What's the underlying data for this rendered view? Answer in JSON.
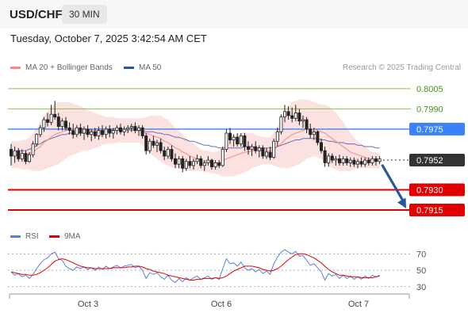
{
  "header": {
    "symbol": "USD/CHF",
    "timeframe": "30 MIN"
  },
  "datetime": "Tuesday, October 7, 2025 3:42:54 AM CET",
  "credit": "Research © 2025 Trading Central",
  "legend_main": [
    {
      "label": "MA 20 + Bollinger Bands",
      "color": "#f28b82"
    },
    {
      "label": "MA 50",
      "color": "#2b5797"
    }
  ],
  "legend_rsi": [
    {
      "label": "RSI",
      "color": "#5b7fd6"
    },
    {
      "label": "9MA",
      "color": "#e00000"
    }
  ],
  "chart_data": [
    {
      "type": "candlestick",
      "ylim": [
        0.7905,
        0.8012
      ],
      "x_ticks": [
        "Oct 3",
        "Oct 6",
        "Oct 7"
      ],
      "candles": [
        [
          0.796,
          0.7964,
          0.7948,
          0.7955
        ],
        [
          0.7955,
          0.7962,
          0.795,
          0.7959
        ],
        [
          0.7959,
          0.7961,
          0.7951,
          0.7953
        ],
        [
          0.7953,
          0.796,
          0.7951,
          0.7957
        ],
        [
          0.7957,
          0.7959,
          0.7949,
          0.7951
        ],
        [
          0.7951,
          0.7958,
          0.795,
          0.7956
        ],
        [
          0.7956,
          0.7966,
          0.7954,
          0.7964
        ],
        [
          0.7964,
          0.7972,
          0.7962,
          0.7971
        ],
        [
          0.7971,
          0.7978,
          0.7969,
          0.7976
        ],
        [
          0.7976,
          0.7984,
          0.7973,
          0.7982
        ],
        [
          0.7982,
          0.7987,
          0.7977,
          0.798
        ],
        [
          0.798,
          0.7993,
          0.7978,
          0.7986
        ],
        [
          0.7986,
          0.7996,
          0.7982,
          0.7984
        ],
        [
          0.7984,
          0.7987,
          0.7974,
          0.7977
        ],
        [
          0.7977,
          0.7983,
          0.7974,
          0.7981
        ],
        [
          0.7981,
          0.7984,
          0.7974,
          0.7976
        ],
        [
          0.7976,
          0.798,
          0.7971,
          0.7974
        ],
        [
          0.7974,
          0.7979,
          0.7968,
          0.7971
        ],
        [
          0.7971,
          0.7978,
          0.7969,
          0.7976
        ],
        [
          0.7976,
          0.7979,
          0.797,
          0.7972
        ],
        [
          0.7972,
          0.7977,
          0.7967,
          0.7975
        ],
        [
          0.7975,
          0.7978,
          0.7969,
          0.7971
        ],
        [
          0.7971,
          0.7975,
          0.7966,
          0.7973
        ],
        [
          0.7973,
          0.7976,
          0.7968,
          0.797
        ],
        [
          0.797,
          0.7977,
          0.7967,
          0.7974
        ],
        [
          0.7974,
          0.7978,
          0.7969,
          0.7971
        ],
        [
          0.7971,
          0.7977,
          0.7968,
          0.7975
        ],
        [
          0.7975,
          0.7978,
          0.7969,
          0.7972
        ],
        [
          0.7972,
          0.7976,
          0.7968,
          0.7974
        ],
        [
          0.7974,
          0.7978,
          0.7971,
          0.7976
        ],
        [
          0.7976,
          0.7979,
          0.7971,
          0.7973
        ],
        [
          0.7973,
          0.7977,
          0.797,
          0.7975
        ],
        [
          0.7975,
          0.7978,
          0.7972,
          0.7976
        ],
        [
          0.7976,
          0.7979,
          0.7973,
          0.7977
        ],
        [
          0.7977,
          0.798,
          0.7972,
          0.7974
        ],
        [
          0.7974,
          0.7978,
          0.797,
          0.7976
        ],
        [
          0.7976,
          0.7978,
          0.7968,
          0.797
        ],
        [
          0.797,
          0.7972,
          0.7956,
          0.7959
        ],
        [
          0.7959,
          0.7968,
          0.7957,
          0.7966
        ],
        [
          0.7966,
          0.797,
          0.7961,
          0.7963
        ],
        [
          0.7963,
          0.7967,
          0.7958,
          0.7965
        ],
        [
          0.7965,
          0.7968,
          0.7957,
          0.7959
        ],
        [
          0.7959,
          0.7962,
          0.7952,
          0.7955
        ],
        [
          0.7955,
          0.7962,
          0.7953,
          0.796
        ],
        [
          0.796,
          0.7963,
          0.7951,
          0.7953
        ],
        [
          0.7953,
          0.7957,
          0.7946,
          0.7949
        ],
        [
          0.7949,
          0.7955,
          0.7946,
          0.7953
        ],
        [
          0.7953,
          0.7955,
          0.7943,
          0.7946
        ],
        [
          0.7946,
          0.7953,
          0.7944,
          0.7951
        ],
        [
          0.7951,
          0.7955,
          0.7946,
          0.7948
        ],
        [
          0.7948,
          0.7953,
          0.7945,
          0.7951
        ],
        [
          0.7951,
          0.7956,
          0.7949,
          0.7953
        ],
        [
          0.7953,
          0.7955,
          0.7946,
          0.7948
        ],
        [
          0.7948,
          0.7952,
          0.7944,
          0.795
        ],
        [
          0.795,
          0.7955,
          0.7948,
          0.7952
        ],
        [
          0.7952,
          0.7953,
          0.7945,
          0.7947
        ],
        [
          0.7947,
          0.7952,
          0.7945,
          0.795
        ],
        [
          0.795,
          0.7952,
          0.7946,
          0.7948
        ],
        [
          0.7948,
          0.7962,
          0.7947,
          0.796
        ],
        [
          0.796,
          0.7975,
          0.7958,
          0.7972
        ],
        [
          0.7972,
          0.7976,
          0.7964,
          0.7967
        ],
        [
          0.7967,
          0.7971,
          0.7962,
          0.7969
        ],
        [
          0.7969,
          0.7972,
          0.7962,
          0.7964
        ],
        [
          0.7964,
          0.7972,
          0.7962,
          0.797
        ],
        [
          0.797,
          0.7972,
          0.7959,
          0.7962
        ],
        [
          0.7962,
          0.7966,
          0.7956,
          0.796
        ],
        [
          0.796,
          0.7964,
          0.7955,
          0.7962
        ],
        [
          0.7962,
          0.7966,
          0.7957,
          0.7959
        ],
        [
          0.7959,
          0.7963,
          0.7954,
          0.7961
        ],
        [
          0.7961,
          0.7963,
          0.7953,
          0.7955
        ],
        [
          0.7955,
          0.7961,
          0.7953,
          0.7958
        ],
        [
          0.7958,
          0.7962,
          0.7952,
          0.7954
        ],
        [
          0.7954,
          0.7968,
          0.7953,
          0.7966
        ],
        [
          0.7966,
          0.7976,
          0.7962,
          0.7973
        ],
        [
          0.7973,
          0.7986,
          0.7971,
          0.7984
        ],
        [
          0.7984,
          0.7993,
          0.798,
          0.7988
        ],
        [
          0.7988,
          0.7992,
          0.7982,
          0.7985
        ],
        [
          0.7985,
          0.7991,
          0.798,
          0.7983
        ],
        [
          0.7983,
          0.7993,
          0.7981,
          0.7987
        ],
        [
          0.7987,
          0.799,
          0.7978,
          0.7981
        ],
        [
          0.7981,
          0.7985,
          0.7976,
          0.7982
        ],
        [
          0.7982,
          0.7984,
          0.7972,
          0.7975
        ],
        [
          0.7975,
          0.7979,
          0.7968,
          0.7971
        ],
        [
          0.7971,
          0.7976,
          0.7967,
          0.7973
        ],
        [
          0.7973,
          0.7974,
          0.7963,
          0.7965
        ],
        [
          0.7965,
          0.7968,
          0.7957,
          0.7959
        ],
        [
          0.7959,
          0.7962,
          0.7947,
          0.795
        ],
        [
          0.795,
          0.7957,
          0.7947,
          0.7955
        ],
        [
          0.7955,
          0.7957,
          0.795,
          0.7952
        ],
        [
          0.7952,
          0.7955,
          0.7948,
          0.7953
        ],
        [
          0.7953,
          0.7956,
          0.7948,
          0.795
        ],
        [
          0.795,
          0.7955,
          0.7948,
          0.7953
        ],
        [
          0.7953,
          0.7955,
          0.7948,
          0.795
        ],
        [
          0.795,
          0.7954,
          0.7947,
          0.7952
        ],
        [
          0.7952,
          0.7954,
          0.7947,
          0.7949
        ],
        [
          0.7949,
          0.7953,
          0.7946,
          0.7951
        ],
        [
          0.7951,
          0.7954,
          0.7947,
          0.7949
        ],
        [
          0.7949,
          0.7954,
          0.7947,
          0.7952
        ],
        [
          0.7952,
          0.7954,
          0.7948,
          0.795
        ],
        [
          0.795,
          0.7955,
          0.7948,
          0.7953
        ],
        [
          0.7953,
          0.7955,
          0.7948,
          0.7951
        ],
        [
          0.7951,
          0.7955,
          0.7949,
          0.7953
        ]
      ],
      "ma50": [
        0.7958,
        0.7958,
        0.7959,
        0.7959,
        0.7959,
        0.796,
        0.7961,
        0.7963,
        0.7964,
        0.7966,
        0.7967,
        0.7968,
        0.7969,
        0.797,
        0.7971,
        0.7971,
        0.7972,
        0.7972,
        0.7972,
        0.7972,
        0.7972,
        0.7972,
        0.7973,
        0.7973,
        0.7973,
        0.7973,
        0.7973,
        0.7973,
        0.7974,
        0.7974,
        0.7974,
        0.7974,
        0.7974,
        0.7974,
        0.7974,
        0.7974,
        0.7974,
        0.7973,
        0.7973,
        0.7973,
        0.7972,
        0.7972,
        0.7971,
        0.7971,
        0.797,
        0.7969,
        0.7969,
        0.7968,
        0.7967,
        0.7966,
        0.7966,
        0.7965,
        0.7964,
        0.7963,
        0.7963,
        0.7962,
        0.7962,
        0.7961,
        0.7961,
        0.7961,
        0.7961,
        0.7961,
        0.7961,
        0.7961,
        0.7962,
        0.7962,
        0.7962,
        0.7961,
        0.7961,
        0.7961,
        0.7961,
        0.7961,
        0.7961,
        0.7962,
        0.7963,
        0.7964,
        0.7965,
        0.7966,
        0.7967,
        0.7967,
        0.7968,
        0.7968,
        0.7968,
        0.7968,
        0.7968,
        0.7967,
        0.7967,
        0.7966,
        0.7966,
        0.7965,
        0.7965,
        0.7965,
        0.7964,
        0.7964,
        0.7964,
        0.7963,
        0.7963,
        0.7962,
        0.7962,
        0.7962,
        0.7961,
        0.7961
      ],
      "ma20": [
        0.7956,
        0.7956,
        0.7956,
        0.7956,
        0.7956,
        0.7957,
        0.7958,
        0.796,
        0.7962,
        0.7965,
        0.7967,
        0.7969,
        0.7971,
        0.7972,
        0.7973,
        0.7974,
        0.7975,
        0.7975,
        0.7975,
        0.7975,
        0.7975,
        0.7974,
        0.7974,
        0.7974,
        0.7974,
        0.7974,
        0.7974,
        0.7974,
        0.7974,
        0.7974,
        0.7974,
        0.7974,
        0.7974,
        0.7974,
        0.7974,
        0.7974,
        0.7973,
        0.7972,
        0.7971,
        0.797,
        0.7969,
        0.7968,
        0.7966,
        0.7965,
        0.7963,
        0.7961,
        0.796,
        0.7958,
        0.7957,
        0.7955,
        0.7954,
        0.7953,
        0.7952,
        0.7951,
        0.7951,
        0.795,
        0.795,
        0.795,
        0.7951,
        0.7953,
        0.7954,
        0.7955,
        0.7956,
        0.7957,
        0.7958,
        0.7958,
        0.7959,
        0.7959,
        0.7959,
        0.7959,
        0.7959,
        0.7959,
        0.796,
        0.7962,
        0.7964,
        0.7967,
        0.7969,
        0.7971,
        0.7972,
        0.7973,
        0.7974,
        0.7975,
        0.7975,
        0.7975,
        0.7974,
        0.7973,
        0.7972,
        0.797,
        0.7968,
        0.7966,
        0.7964,
        0.7962,
        0.796,
        0.7958,
        0.7957,
        0.7956,
        0.7955,
        0.7954,
        0.7953,
        0.7952,
        0.7952,
        0.7951
      ],
      "bb_width": [
        0.001,
        0.001,
        0.001,
        0.0011,
        0.0011,
        0.0012,
        0.0014,
        0.0016,
        0.0018,
        0.002,
        0.0021,
        0.0022,
        0.0023,
        0.0023,
        0.0022,
        0.0021,
        0.002,
        0.0019,
        0.0018,
        0.0017,
        0.0016,
        0.0015,
        0.0014,
        0.0013,
        0.0012,
        0.0011,
        0.001,
        0.001,
        0.001,
        0.0009,
        0.0009,
        0.0009,
        0.0009,
        0.0009,
        0.0009,
        0.0009,
        0.001,
        0.0012,
        0.0014,
        0.0015,
        0.0016,
        0.0017,
        0.0017,
        0.0017,
        0.0016,
        0.0015,
        0.0014,
        0.0013,
        0.0012,
        0.0011,
        0.001,
        0.0009,
        0.0008,
        0.0008,
        0.0008,
        0.0008,
        0.0008,
        0.0009,
        0.0011,
        0.0013,
        0.0014,
        0.0015,
        0.0015,
        0.0015,
        0.0015,
        0.0014,
        0.0013,
        0.0012,
        0.0011,
        0.001,
        0.001,
        0.001,
        0.0012,
        0.0015,
        0.0018,
        0.0021,
        0.0023,
        0.0024,
        0.0024,
        0.0024,
        0.0023,
        0.0022,
        0.0021,
        0.002,
        0.002,
        0.002,
        0.0021,
        0.0022,
        0.0022,
        0.0021,
        0.002,
        0.0018,
        0.0016,
        0.0014,
        0.0012,
        0.001,
        0.0009,
        0.0008,
        0.0007,
        0.0006,
        0.0006,
        0.0006
      ],
      "levels": [
        {
          "value": 0.8005,
          "label": "0.8005",
          "color": "#8bc34a",
          "kind": "resistance"
        },
        {
          "value": 0.799,
          "label": "0.7990",
          "color": "#8bc34a",
          "kind": "resistance"
        },
        {
          "value": 0.7975,
          "label": "0.7975",
          "color": "#3b82f6",
          "kind": "pivot"
        },
        {
          "value": 0.7952,
          "label": "0.7952",
          "color": "#333333",
          "kind": "last"
        },
        {
          "value": 0.793,
          "label": "0.7930",
          "color": "#e00000",
          "kind": "support"
        },
        {
          "value": 0.7915,
          "label": "0.7915",
          "color": "#e00000",
          "kind": "support"
        }
      ],
      "arrow": {
        "from_index": 101,
        "from": 0.7951,
        "to": 0.7915,
        "color": "#2b5797"
      }
    },
    {
      "type": "line",
      "name": "RSI",
      "ylim": [
        24,
        78
      ],
      "y_ticks": [
        70,
        50,
        30
      ],
      "rsi": [
        48,
        44,
        46,
        42,
        44,
        40,
        45,
        52,
        58,
        63,
        65,
        70,
        72,
        64,
        62,
        55,
        52,
        50,
        54,
        52,
        54,
        51,
        53,
        50,
        54,
        51,
        55,
        52,
        54,
        56,
        53,
        55,
        56,
        57,
        53,
        55,
        50,
        40,
        47,
        45,
        47,
        42,
        39,
        44,
        38,
        35,
        40,
        36,
        41,
        38,
        41,
        43,
        39,
        41,
        43,
        39,
        41,
        39,
        52,
        64,
        58,
        59,
        55,
        60,
        53,
        50,
        52,
        48,
        51,
        46,
        49,
        45,
        58,
        66,
        72,
        75,
        72,
        70,
        73,
        67,
        68,
        62,
        56,
        58,
        53,
        48,
        38,
        46,
        43,
        45,
        40,
        44,
        40,
        43,
        39,
        42,
        39,
        43,
        40,
        44,
        42,
        44
      ],
      "ma9": [
        48,
        47,
        46,
        45,
        45,
        44,
        44,
        45,
        47,
        50,
        53,
        57,
        61,
        63,
        64,
        63,
        61,
        59,
        57,
        55,
        54,
        53,
        53,
        52,
        52,
        52,
        52,
        52,
        53,
        53,
        53,
        53,
        54,
        54,
        55,
        55,
        54,
        52,
        51,
        49,
        48,
        47,
        46,
        44,
        43,
        42,
        41,
        40,
        39,
        38,
        38,
        39,
        39,
        40,
        40,
        40,
        41,
        40,
        41,
        43,
        46,
        49,
        51,
        53,
        55,
        55,
        55,
        54,
        53,
        51,
        50,
        49,
        50,
        52,
        55,
        59,
        63,
        66,
        69,
        70,
        70,
        69,
        67,
        65,
        62,
        59,
        55,
        51,
        48,
        46,
        44,
        44,
        43,
        42,
        42,
        42,
        41,
        41,
        41,
        41,
        42,
        43
      ]
    }
  ]
}
